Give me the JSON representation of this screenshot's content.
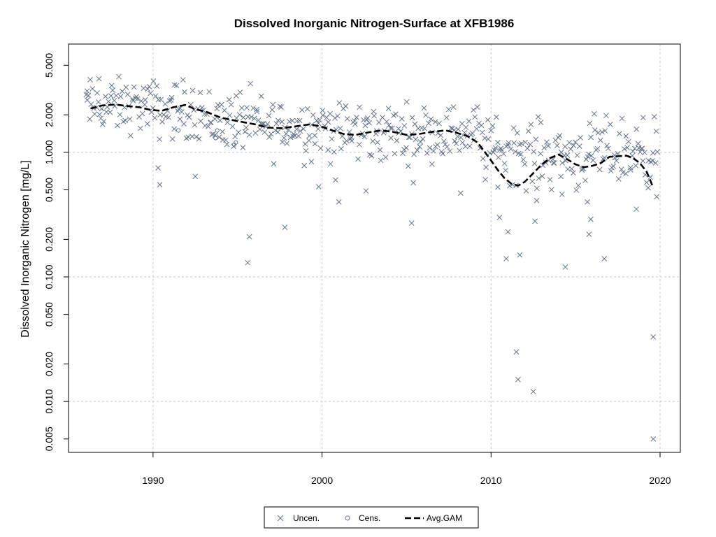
{
  "chart_data": {
    "type": "scatter",
    "title": "Dissolved Inorganic Nitrogen-Surface at XFB1986",
    "xlabel": "",
    "ylabel": "Dissolved Inorganic Nitrogen [mg/L]",
    "xlim": [
      1985.0,
      2021.2
    ],
    "ylim": [
      0.0039,
      7.4
    ],
    "yscale": "log",
    "xticks": [
      1990,
      2000,
      2010,
      2020
    ],
    "xtick_labels": [
      "1990",
      "2000",
      "2010",
      "2020"
    ],
    "yticks": [
      0.005,
      0.01,
      0.02,
      0.05,
      0.1,
      0.2,
      0.5,
      1,
      2,
      5
    ],
    "ytick_labels": [
      "0.005",
      "0.010",
      "0.020",
      "0.050",
      "0.100",
      "0.200",
      "0.500",
      "1.000",
      "2.000",
      "5.000"
    ],
    "xgrid": [
      1990,
      2000,
      2010,
      2020
    ],
    "ygrid": [
      0.01,
      0.1,
      1
    ],
    "legend": {
      "position": "bottom-center",
      "entries": [
        {
          "label": "Uncen.",
          "symbol": "x"
        },
        {
          "label": "Cens.",
          "symbol": "circle"
        },
        {
          "label": "Avg.GAM",
          "symbol": "dashed-line"
        }
      ]
    },
    "colors": {
      "points": "#66758a",
      "gam": "#000000",
      "grid": "#c8c8c8"
    },
    "uncensored_outliers": {
      "x": [
        1986.1,
        1986.8,
        1990.3,
        1990.4,
        1992.5,
        1995.6,
        1995.7,
        1997.8,
        1999.8,
        2000.8,
        2001.0,
        2002.6,
        2005.3,
        2005.4,
        2008.2,
        2010.4,
        2010.5,
        2010.9,
        2011.0,
        2011.5,
        2011.6,
        2011.7,
        2012.5,
        2012.6,
        2012.7,
        2014.2,
        2014.4,
        2015.7,
        2015.8,
        2015.9,
        2016.7,
        2018.6,
        2019.0,
        2019.6,
        2019.6,
        2019.8
      ],
      "y": [
        3.1,
        3.9,
        0.75,
        0.55,
        0.64,
        0.13,
        0.21,
        0.25,
        0.53,
        0.6,
        0.4,
        0.49,
        0.27,
        0.57,
        0.47,
        1.2,
        0.3,
        0.14,
        0.23,
        0.025,
        0.015,
        0.15,
        0.012,
        0.28,
        0.41,
        0.46,
        0.12,
        0.4,
        0.22,
        0.29,
        0.14,
        0.35,
        1.9,
        0.005,
        0.033,
        0.44
      ]
    },
    "uncensored_bulk": {
      "segments": [
        {
          "from": 1986.0,
          "to": 1990.0,
          "level": 2.35,
          "spread": 0.24
        },
        {
          "from": 1990.0,
          "to": 1993.0,
          "level": 2.2,
          "spread": 0.26
        },
        {
          "from": 1993.0,
          "to": 1996.0,
          "level": 1.8,
          "spread": 0.28
        },
        {
          "from": 1996.0,
          "to": 2000.5,
          "level": 1.6,
          "spread": 0.28
        },
        {
          "from": 2000.5,
          "to": 2004.0,
          "level": 1.45,
          "spread": 0.28
        },
        {
          "from": 2004.0,
          "to": 2009.5,
          "level": 1.45,
          "spread": 0.24
        },
        {
          "from": 2009.5,
          "to": 2012.0,
          "level": 1.05,
          "spread": 0.3
        },
        {
          "from": 2012.0,
          "to": 2016.0,
          "level": 0.95,
          "spread": 0.3
        },
        {
          "from": 2016.0,
          "to": 2019.9,
          "level": 1.0,
          "spread": 0.3
        }
      ],
      "points_per_year": 15
    },
    "censored": {
      "x": [
        1991.5,
        1993.7,
        1993.8,
        1994.8,
        1994.9
      ],
      "y": [
        1.5,
        1.3,
        1.5,
        1.15,
        1.2
      ]
    },
    "gam": {
      "x": [
        1986.3,
        1987.0,
        1987.8,
        1988.5,
        1989.2,
        1989.8,
        1990.5,
        1991.2,
        1991.9,
        1992.5,
        1993.2,
        1994.0,
        1995.0,
        1996.0,
        1996.8,
        1997.6,
        1998.5,
        1999.3,
        2000.0,
        2000.6,
        2001.3,
        2002.0,
        2002.8,
        2003.5,
        2004.2,
        2005.0,
        2005.7,
        2006.5,
        2007.3,
        2008.0,
        2008.6,
        2009.2,
        2009.6,
        2010.0,
        2010.4,
        2010.8,
        2011.2,
        2011.6,
        2012.0,
        2012.5,
        2013.0,
        2013.5,
        2014.0,
        2014.5,
        2015.0,
        2015.5,
        2016.0,
        2016.5,
        2017.0,
        2017.5,
        2018.0,
        2018.4,
        2018.8,
        2019.2,
        2019.6
      ],
      "y": [
        2.25,
        2.38,
        2.42,
        2.35,
        2.3,
        2.2,
        2.15,
        2.3,
        2.4,
        2.22,
        2.1,
        1.9,
        1.78,
        1.68,
        1.58,
        1.56,
        1.62,
        1.68,
        1.6,
        1.5,
        1.4,
        1.38,
        1.45,
        1.5,
        1.46,
        1.38,
        1.4,
        1.46,
        1.5,
        1.43,
        1.35,
        1.2,
        1.02,
        0.86,
        0.72,
        0.62,
        0.56,
        0.54,
        0.58,
        0.68,
        0.8,
        0.9,
        0.96,
        0.88,
        0.8,
        0.76,
        0.78,
        0.82,
        0.92,
        0.93,
        0.94,
        0.9,
        0.82,
        0.7,
        0.52
      ]
    }
  }
}
